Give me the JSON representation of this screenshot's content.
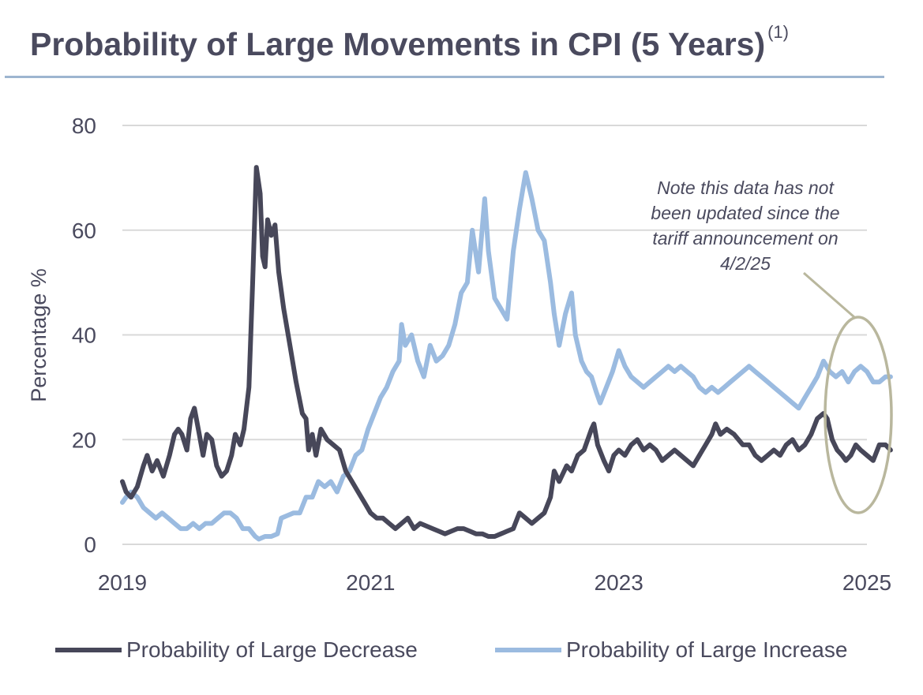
{
  "chart_data": {
    "type": "line",
    "title": "Probability of Large Movements in CPI (5 Years)",
    "title_footnote": "(1)",
    "xlabel": "",
    "ylabel": "Percentage %",
    "xlim": [
      2019,
      2025
    ],
    "ylim": [
      0,
      80
    ],
    "x_ticks": [
      "2019",
      "2021",
      "2023",
      "2025"
    ],
    "y_ticks": [
      "0",
      "20",
      "40",
      "60",
      "80"
    ],
    "grid": true,
    "legend_position": "bottom",
    "series": [
      {
        "name": "Probability of Large Decrease",
        "color": "#474759",
        "points": [
          [
            2019.0,
            12
          ],
          [
            2019.03,
            10
          ],
          [
            2019.07,
            9
          ],
          [
            2019.12,
            11
          ],
          [
            2019.17,
            15
          ],
          [
            2019.2,
            17
          ],
          [
            2019.24,
            14
          ],
          [
            2019.28,
            16
          ],
          [
            2019.33,
            13
          ],
          [
            2019.38,
            17
          ],
          [
            2019.42,
            21
          ],
          [
            2019.45,
            22
          ],
          [
            2019.48,
            21
          ],
          [
            2019.52,
            18
          ],
          [
            2019.55,
            24
          ],
          [
            2019.58,
            26
          ],
          [
            2019.62,
            21
          ],
          [
            2019.65,
            17
          ],
          [
            2019.68,
            21
          ],
          [
            2019.72,
            20
          ],
          [
            2019.76,
            15
          ],
          [
            2019.8,
            13
          ],
          [
            2019.84,
            14
          ],
          [
            2019.88,
            17
          ],
          [
            2019.91,
            21
          ],
          [
            2019.95,
            19
          ],
          [
            2019.98,
            22
          ],
          [
            2020.02,
            30
          ],
          [
            2020.05,
            50
          ],
          [
            2020.08,
            72
          ],
          [
            2020.11,
            67
          ],
          [
            2020.13,
            55
          ],
          [
            2020.15,
            53
          ],
          [
            2020.17,
            62
          ],
          [
            2020.2,
            59
          ],
          [
            2020.23,
            61
          ],
          [
            2020.26,
            52
          ],
          [
            2020.3,
            45
          ],
          [
            2020.35,
            38
          ],
          [
            2020.4,
            31
          ],
          [
            2020.45,
            25
          ],
          [
            2020.48,
            24
          ],
          [
            2020.5,
            18
          ],
          [
            2020.53,
            21
          ],
          [
            2020.56,
            17
          ],
          [
            2020.6,
            22
          ],
          [
            2020.65,
            20
          ],
          [
            2020.7,
            19
          ],
          [
            2020.75,
            18
          ],
          [
            2020.8,
            14
          ],
          [
            2020.85,
            12
          ],
          [
            2020.9,
            10
          ],
          [
            2020.95,
            8
          ],
          [
            2021.0,
            6
          ],
          [
            2021.05,
            5
          ],
          [
            2021.1,
            5
          ],
          [
            2021.15,
            4
          ],
          [
            2021.2,
            3
          ],
          [
            2021.25,
            4
          ],
          [
            2021.3,
            5
          ],
          [
            2021.35,
            3
          ],
          [
            2021.4,
            4
          ],
          [
            2021.5,
            3
          ],
          [
            2021.55,
            2.5
          ],
          [
            2021.6,
            2
          ],
          [
            2021.65,
            2.5
          ],
          [
            2021.7,
            3
          ],
          [
            2021.75,
            3
          ],
          [
            2021.8,
            2.5
          ],
          [
            2021.85,
            2
          ],
          [
            2021.9,
            2
          ],
          [
            2021.95,
            1.5
          ],
          [
            2022.0,
            1.5
          ],
          [
            2022.05,
            2
          ],
          [
            2022.1,
            2.5
          ],
          [
            2022.15,
            3
          ],
          [
            2022.2,
            6
          ],
          [
            2022.25,
            5
          ],
          [
            2022.3,
            4
          ],
          [
            2022.35,
            5
          ],
          [
            2022.4,
            6
          ],
          [
            2022.45,
            9
          ],
          [
            2022.48,
            14
          ],
          [
            2022.52,
            12
          ],
          [
            2022.58,
            15
          ],
          [
            2022.62,
            14
          ],
          [
            2022.67,
            17
          ],
          [
            2022.72,
            18
          ],
          [
            2022.78,
            22
          ],
          [
            2022.8,
            23
          ],
          [
            2022.83,
            19
          ],
          [
            2022.88,
            16
          ],
          [
            2022.92,
            14
          ],
          [
            2022.96,
            17
          ],
          [
            2023.0,
            18
          ],
          [
            2023.05,
            17
          ],
          [
            2023.1,
            19
          ],
          [
            2023.15,
            20
          ],
          [
            2023.2,
            18
          ],
          [
            2023.25,
            19
          ],
          [
            2023.3,
            18
          ],
          [
            2023.35,
            16
          ],
          [
            2023.4,
            17
          ],
          [
            2023.45,
            18
          ],
          [
            2023.5,
            17
          ],
          [
            2023.55,
            16
          ],
          [
            2023.6,
            15
          ],
          [
            2023.65,
            17
          ],
          [
            2023.7,
            19
          ],
          [
            2023.75,
            21
          ],
          [
            2023.78,
            23
          ],
          [
            2023.82,
            21
          ],
          [
            2023.87,
            22
          ],
          [
            2023.93,
            21
          ],
          [
            2024.0,
            19
          ],
          [
            2024.05,
            19
          ],
          [
            2024.1,
            17
          ],
          [
            2024.15,
            16
          ],
          [
            2024.2,
            17
          ],
          [
            2024.25,
            18
          ],
          [
            2024.3,
            17
          ],
          [
            2024.35,
            19
          ],
          [
            2024.4,
            20
          ],
          [
            2024.45,
            18
          ],
          [
            2024.5,
            19
          ],
          [
            2024.55,
            21
          ],
          [
            2024.6,
            24
          ],
          [
            2024.65,
            25
          ],
          [
            2024.68,
            24
          ],
          [
            2024.72,
            20
          ],
          [
            2024.76,
            18
          ],
          [
            2024.8,
            17
          ],
          [
            2024.83,
            16
          ],
          [
            2024.87,
            17
          ],
          [
            2024.91,
            19
          ],
          [
            2024.95,
            18
          ],
          [
            2025.0,
            17
          ],
          [
            2025.05,
            16
          ],
          [
            2025.1,
            19
          ],
          [
            2025.15,
            19
          ],
          [
            2025.19,
            18
          ]
        ]
      },
      {
        "name": "Probability of Large Increase",
        "color": "#9bbbe0",
        "points": [
          [
            2019.0,
            8
          ],
          [
            2019.03,
            9
          ],
          [
            2019.07,
            10
          ],
          [
            2019.12,
            9
          ],
          [
            2019.17,
            7
          ],
          [
            2019.22,
            6
          ],
          [
            2019.27,
            5
          ],
          [
            2019.32,
            6
          ],
          [
            2019.37,
            5
          ],
          [
            2019.42,
            4
          ],
          [
            2019.47,
            3
          ],
          [
            2019.52,
            3
          ],
          [
            2019.57,
            4
          ],
          [
            2019.62,
            3
          ],
          [
            2019.67,
            4
          ],
          [
            2019.72,
            4
          ],
          [
            2019.77,
            5
          ],
          [
            2019.82,
            6
          ],
          [
            2019.87,
            6
          ],
          [
            2019.92,
            5
          ],
          [
            2019.97,
            3
          ],
          [
            2020.02,
            3
          ],
          [
            2020.07,
            1.5
          ],
          [
            2020.1,
            1
          ],
          [
            2020.15,
            1.5
          ],
          [
            2020.2,
            1.5
          ],
          [
            2020.25,
            2
          ],
          [
            2020.28,
            5
          ],
          [
            2020.33,
            5.5
          ],
          [
            2020.38,
            6
          ],
          [
            2020.43,
            6
          ],
          [
            2020.48,
            9
          ],
          [
            2020.53,
            9
          ],
          [
            2020.58,
            12
          ],
          [
            2020.63,
            11
          ],
          [
            2020.68,
            12
          ],
          [
            2020.73,
            10
          ],
          [
            2020.78,
            13
          ],
          [
            2020.83,
            14
          ],
          [
            2020.88,
            17
          ],
          [
            2020.93,
            18
          ],
          [
            2020.98,
            22
          ],
          [
            2021.03,
            25
          ],
          [
            2021.08,
            28
          ],
          [
            2021.13,
            30
          ],
          [
            2021.18,
            33
          ],
          [
            2021.23,
            35
          ],
          [
            2021.25,
            42
          ],
          [
            2021.28,
            38
          ],
          [
            2021.33,
            40
          ],
          [
            2021.38,
            35
          ],
          [
            2021.43,
            32
          ],
          [
            2021.48,
            38
          ],
          [
            2021.53,
            35
          ],
          [
            2021.58,
            36
          ],
          [
            2021.63,
            38
          ],
          [
            2021.68,
            42
          ],
          [
            2021.73,
            48
          ],
          [
            2021.78,
            50
          ],
          [
            2021.82,
            60
          ],
          [
            2021.87,
            52
          ],
          [
            2021.92,
            66
          ],
          [
            2021.95,
            56
          ],
          [
            2022.0,
            47
          ],
          [
            2022.05,
            45
          ],
          [
            2022.1,
            43
          ],
          [
            2022.15,
            56
          ],
          [
            2022.2,
            64
          ],
          [
            2022.25,
            71
          ],
          [
            2022.3,
            66
          ],
          [
            2022.35,
            60
          ],
          [
            2022.4,
            58
          ],
          [
            2022.45,
            50
          ],
          [
            2022.48,
            44
          ],
          [
            2022.52,
            38
          ],
          [
            2022.57,
            44
          ],
          [
            2022.62,
            48
          ],
          [
            2022.65,
            40
          ],
          [
            2022.7,
            35
          ],
          [
            2022.74,
            33
          ],
          [
            2022.78,
            32
          ],
          [
            2022.82,
            29
          ],
          [
            2022.85,
            27
          ],
          [
            2022.9,
            30
          ],
          [
            2022.95,
            33
          ],
          [
            2023.0,
            37
          ],
          [
            2023.05,
            34
          ],
          [
            2023.1,
            32
          ],
          [
            2023.15,
            31
          ],
          [
            2023.2,
            30
          ],
          [
            2023.25,
            31
          ],
          [
            2023.3,
            32
          ],
          [
            2023.35,
            33
          ],
          [
            2023.4,
            34
          ],
          [
            2023.45,
            33
          ],
          [
            2023.5,
            34
          ],
          [
            2023.55,
            33
          ],
          [
            2023.6,
            32
          ],
          [
            2023.65,
            30
          ],
          [
            2023.7,
            29
          ],
          [
            2023.75,
            30
          ],
          [
            2023.8,
            29
          ],
          [
            2023.85,
            30
          ],
          [
            2023.9,
            31
          ],
          [
            2023.95,
            32
          ],
          [
            2024.0,
            33
          ],
          [
            2024.05,
            34
          ],
          [
            2024.1,
            33
          ],
          [
            2024.15,
            32
          ],
          [
            2024.2,
            31
          ],
          [
            2024.25,
            30
          ],
          [
            2024.3,
            29
          ],
          [
            2024.35,
            28
          ],
          [
            2024.4,
            27
          ],
          [
            2024.45,
            26
          ],
          [
            2024.5,
            28
          ],
          [
            2024.55,
            30
          ],
          [
            2024.6,
            32
          ],
          [
            2024.65,
            35
          ],
          [
            2024.7,
            33
          ],
          [
            2024.75,
            32
          ],
          [
            2024.8,
            33
          ],
          [
            2024.85,
            31
          ],
          [
            2024.9,
            33
          ],
          [
            2024.95,
            34
          ],
          [
            2025.0,
            33
          ],
          [
            2025.05,
            31
          ],
          [
            2025.1,
            31
          ],
          [
            2025.15,
            32
          ],
          [
            2025.19,
            32
          ]
        ]
      }
    ],
    "annotation": {
      "lines": [
        "Note this data has not",
        "been updated since the",
        "tariff announcement on",
        "4/2/25"
      ]
    }
  }
}
